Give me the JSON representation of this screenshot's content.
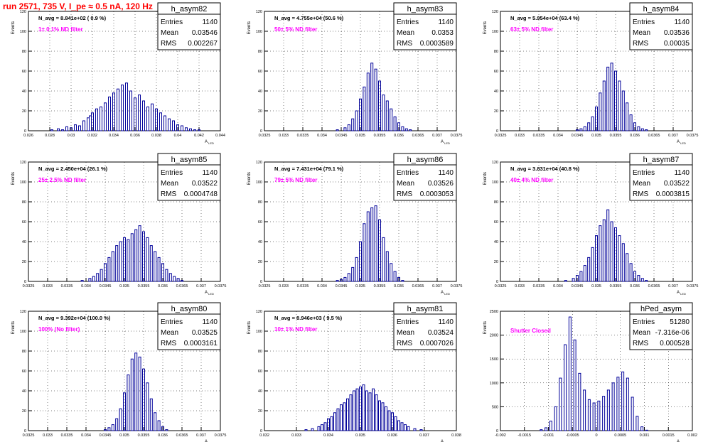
{
  "title": "run 2571,   735 V, I_pe ≈ 0.5 nA, 120 Hz",
  "title_color": "#ff0000",
  "line_color": "#000099",
  "annotation_color": "#ff00ff",
  "ylabel": "Events",
  "xlabel": "A",
  "xlabel_sub": "LED",
  "chart_data": [
    {
      "type": "bar",
      "name": "h_asym82",
      "navg": "N_avg = 8.841e+02 ( 0.9 %)",
      "filter": "1± 0.1% ND filter",
      "stats": [
        [
          "Entries",
          "1140"
        ],
        [
          "Mean",
          "0.03546"
        ],
        [
          "RMS",
          "0.002267"
        ]
      ],
      "xlim": [
        0.026,
        0.044
      ],
      "ylim": [
        0,
        120
      ],
      "xticks": [
        "0.026",
        "0.028",
        "0.03",
        "0.032",
        "0.034",
        "0.036",
        "0.038",
        "0.04",
        "0.042",
        "0.044"
      ],
      "yticks": [
        "0",
        "20",
        "40",
        "60",
        "80",
        "100",
        "120"
      ],
      "x": [
        0.0282,
        0.0288,
        0.0292,
        0.0296,
        0.03,
        0.0304,
        0.0308,
        0.0312,
        0.0316,
        0.0318,
        0.032,
        0.0324,
        0.0328,
        0.0332,
        0.0336,
        0.034,
        0.0344,
        0.0348,
        0.0352,
        0.0356,
        0.036,
        0.0364,
        0.0368,
        0.0372,
        0.0376,
        0.038,
        0.0384,
        0.0388,
        0.0392,
        0.0396,
        0.04,
        0.0404,
        0.0408,
        0.0412,
        0.0416,
        0.042
      ],
      "values": [
        1,
        2,
        1,
        4,
        3,
        6,
        5,
        10,
        13,
        15,
        18,
        22,
        24,
        28,
        34,
        38,
        42,
        46,
        48,
        40,
        33,
        36,
        30,
        24,
        27,
        22,
        18,
        15,
        12,
        10,
        6,
        5,
        3,
        2,
        1,
        1
      ]
    },
    {
      "type": "bar",
      "name": "h_asym83",
      "navg": "N_avg = 4.755e+04 (50.6 %)",
      "filter": "50± 5% ND filter",
      "stats": [
        [
          "Entries",
          "1140"
        ],
        [
          "Mean",
          "0.0353"
        ],
        [
          "RMS",
          "0.0003589"
        ]
      ],
      "xlim": [
        0.0325,
        0.0375
      ],
      "ylim": [
        0,
        120
      ],
      "xticks": [
        "0.0325",
        "0.033",
        "0.0335",
        "0.034",
        "0.0345",
        "0.035",
        "0.0355",
        "0.036",
        "0.0365",
        "0.037",
        "0.0375"
      ],
      "yticks": [
        "0",
        "20",
        "40",
        "60",
        "80",
        "100",
        "120"
      ],
      "x": [
        0.0344,
        0.0346,
        0.0347,
        0.0348,
        0.0349,
        0.035,
        0.0351,
        0.0352,
        0.0353,
        0.0354,
        0.0355,
        0.0356,
        0.0357,
        0.0358,
        0.0359,
        0.036,
        0.0361,
        0.0362,
        0.0363
      ],
      "values": [
        1,
        3,
        6,
        12,
        20,
        32,
        44,
        58,
        68,
        62,
        50,
        36,
        30,
        22,
        14,
        8,
        4,
        2,
        1
      ]
    },
    {
      "type": "bar",
      "name": "h_asym84",
      "navg": "N_avg = 5.954e+04 (63.4 %)",
      "filter": "63± 5% ND filter",
      "stats": [
        [
          "Entries",
          "1140"
        ],
        [
          "Mean",
          "0.03536"
        ],
        [
          "RMS",
          "0.00035"
        ]
      ],
      "xlim": [
        0.0325,
        0.0375
      ],
      "ylim": [
        0,
        120
      ],
      "xticks": [
        "0.0325",
        "0.033",
        "0.0335",
        "0.034",
        "0.0345",
        "0.035",
        "0.0355",
        "0.036",
        "0.0365",
        "0.037",
        "0.0375"
      ],
      "yticks": [
        "0",
        "20",
        "40",
        "60",
        "80",
        "100",
        "120"
      ],
      "x": [
        0.0345,
        0.0346,
        0.0347,
        0.0348,
        0.0349,
        0.035,
        0.0351,
        0.0352,
        0.0353,
        0.0354,
        0.0355,
        0.0356,
        0.0357,
        0.0358,
        0.0359,
        0.036,
        0.0361,
        0.0362,
        0.0363
      ],
      "values": [
        1,
        2,
        4,
        8,
        14,
        24,
        38,
        50,
        64,
        68,
        60,
        50,
        40,
        28,
        16,
        8,
        4,
        2,
        1
      ]
    },
    {
      "type": "bar",
      "name": "h_asym85",
      "navg": "N_avg = 2.450e+04 (26.1 %)",
      "filter": "25± 2.5% ND filter",
      "stats": [
        [
          "Entries",
          "1140"
        ],
        [
          "Mean",
          "0.03522"
        ],
        [
          "RMS",
          "0.0004748"
        ]
      ],
      "xlim": [
        0.0325,
        0.0375
      ],
      "ylim": [
        0,
        120
      ],
      "xticks": [
        "0.0325",
        "0.033",
        "0.0335",
        "0.034",
        "0.0345",
        "0.035",
        "0.0355",
        "0.036",
        "0.0365",
        "0.037",
        "0.0375"
      ],
      "yticks": [
        "0",
        "20",
        "40",
        "60",
        "80",
        "100",
        "120"
      ],
      "x": [
        0.0339,
        0.0341,
        0.0342,
        0.0343,
        0.0344,
        0.0345,
        0.0346,
        0.0347,
        0.0348,
        0.0349,
        0.035,
        0.0351,
        0.0352,
        0.0353,
        0.0354,
        0.0355,
        0.0356,
        0.0357,
        0.0358,
        0.0359,
        0.036,
        0.0361,
        0.0362,
        0.0363,
        0.0364,
        0.0365
      ],
      "values": [
        1,
        3,
        5,
        8,
        12,
        18,
        24,
        30,
        36,
        40,
        44,
        42,
        48,
        52,
        56,
        50,
        44,
        36,
        30,
        24,
        18,
        12,
        8,
        5,
        3,
        1
      ]
    },
    {
      "type": "bar",
      "name": "h_asym86",
      "navg": "N_avg = 7.431e+04 (79.1 %)",
      "filter": "79± 5% ND filter",
      "stats": [
        [
          "Entries",
          "1140"
        ],
        [
          "Mean",
          "0.03526"
        ],
        [
          "RMS",
          "0.0003053"
        ]
      ],
      "xlim": [
        0.0325,
        0.0375
      ],
      "ylim": [
        0,
        120
      ],
      "xticks": [
        "0.0325",
        "0.033",
        "0.0335",
        "0.034",
        "0.0345",
        "0.035",
        "0.0355",
        "0.036",
        "0.0365",
        "0.037",
        "0.0375"
      ],
      "yticks": [
        "0",
        "20",
        "40",
        "60",
        "80",
        "100",
        "120"
      ],
      "x": [
        0.0344,
        0.0345,
        0.0346,
        0.0347,
        0.0348,
        0.0349,
        0.035,
        0.0351,
        0.0352,
        0.0353,
        0.0354,
        0.0355,
        0.0356,
        0.0357,
        0.0358,
        0.0359,
        0.036,
        0.0361
      ],
      "values": [
        1,
        2,
        4,
        8,
        14,
        24,
        40,
        58,
        70,
        74,
        76,
        62,
        44,
        30,
        18,
        10,
        4,
        1
      ]
    },
    {
      "type": "bar",
      "name": "h_asym87",
      "navg": "N_avg = 3.831e+04 (40.8 %)",
      "filter": "40± 4% ND filter",
      "stats": [
        [
          "Entries",
          "1140"
        ],
        [
          "Mean",
          "0.03522"
        ],
        [
          "RMS",
          "0.0003815"
        ]
      ],
      "xlim": [
        0.0325,
        0.0375
      ],
      "ylim": [
        0,
        120
      ],
      "xticks": [
        "0.0325",
        "0.033",
        "0.0335",
        "0.034",
        "0.0345",
        "0.035",
        "0.0355",
        "0.036",
        "0.0365",
        "0.037",
        "0.0375"
      ],
      "yticks": [
        "0",
        "20",
        "40",
        "60",
        "80",
        "100",
        "120"
      ],
      "x": [
        0.0342,
        0.0344,
        0.0345,
        0.0346,
        0.0347,
        0.0348,
        0.0349,
        0.035,
        0.0351,
        0.0352,
        0.0353,
        0.0354,
        0.0355,
        0.0356,
        0.0357,
        0.0358,
        0.0359,
        0.036,
        0.0361,
        0.0362,
        0.0363
      ],
      "values": [
        1,
        3,
        6,
        10,
        16,
        24,
        34,
        46,
        56,
        62,
        72,
        60,
        54,
        46,
        38,
        28,
        18,
        10,
        6,
        3,
        1
      ]
    },
    {
      "type": "bar",
      "name": "h_asym80",
      "navg": "N_avg = 9.392e+04 (100.0 %)",
      "filter": "100% (No filter)",
      "stats": [
        [
          "Entries",
          "1140"
        ],
        [
          "Mean",
          "0.03525"
        ],
        [
          "RMS",
          "0.0003161"
        ]
      ],
      "xlim": [
        0.0325,
        0.0375
      ],
      "ylim": [
        0,
        120
      ],
      "xticks": [
        "0.0325",
        "0.033",
        "0.0335",
        "0.034",
        "0.0345",
        "0.035",
        "0.0355",
        "0.036",
        "0.0365",
        "0.037",
        "0.0375"
      ],
      "yticks": [
        "0",
        "20",
        "40",
        "60",
        "80",
        "100",
        "120"
      ],
      "x": [
        0.0345,
        0.0346,
        0.0347,
        0.0348,
        0.0349,
        0.035,
        0.0351,
        0.0352,
        0.0353,
        0.0354,
        0.0355,
        0.0356,
        0.0357,
        0.0358,
        0.0359,
        0.036,
        0.0361
      ],
      "values": [
        1,
        3,
        6,
        12,
        22,
        38,
        56,
        72,
        78,
        74,
        62,
        48,
        32,
        18,
        10,
        4,
        1
      ]
    },
    {
      "type": "bar",
      "name": "h_asym81",
      "navg": "N_avg = 8.946e+03 ( 9.5 %)",
      "filter": "10± 1% ND filter",
      "stats": [
        [
          "Entries",
          "1140"
        ],
        [
          "Mean",
          "0.03524"
        ],
        [
          "RMS",
          "0.0007026"
        ]
      ],
      "xlim": [
        0.032,
        0.038
      ],
      "ylim": [
        0,
        120
      ],
      "xticks": [
        "0.032",
        "0.033",
        "0.034",
        "0.035",
        "0.036",
        "0.037",
        "0.038"
      ],
      "yticks": [
        "0",
        "20",
        "40",
        "60",
        "80",
        "100",
        "120"
      ],
      "x": [
        0.0333,
        0.0335,
        0.0337,
        0.0338,
        0.0339,
        0.034,
        0.0341,
        0.0342,
        0.0343,
        0.0344,
        0.0345,
        0.0346,
        0.0347,
        0.0348,
        0.0349,
        0.035,
        0.0351,
        0.0352,
        0.0353,
        0.0354,
        0.0355,
        0.0356,
        0.0357,
        0.0358,
        0.0359,
        0.036,
        0.0361,
        0.0362,
        0.0363,
        0.0364,
        0.0365,
        0.0367,
        0.0369
      ],
      "values": [
        1,
        2,
        4,
        6,
        8,
        12,
        14,
        18,
        22,
        26,
        28,
        32,
        36,
        40,
        42,
        44,
        46,
        40,
        38,
        42,
        36,
        30,
        28,
        24,
        20,
        18,
        14,
        10,
        8,
        6,
        4,
        2,
        1
      ]
    },
    {
      "type": "bar",
      "name": "hPed_asym",
      "navg": "",
      "filter": "Shutter Closed",
      "stats": [
        [
          "Entries",
          "51280"
        ],
        [
          "Mean",
          "-7.316e-06"
        ],
        [
          "RMS",
          "0.000528"
        ]
      ],
      "xlim": [
        -0.002,
        0.002
      ],
      "ylim": [
        0,
        2500
      ],
      "xticks": [
        "-0.002",
        "-0.0015",
        "-0.001",
        "-0.0005",
        "0",
        "0.0005",
        "0.001",
        "0.0015",
        "0.002"
      ],
      "yticks": [
        "0",
        "500",
        "1000",
        "1500",
        "2000",
        "2500"
      ],
      "x": [
        -0.00115,
        -0.00105,
        -0.00095,
        -0.00085,
        -0.00075,
        -0.00065,
        -0.00055,
        -0.00045,
        -0.00035,
        -0.00025,
        -0.00015,
        -5e-05,
        5e-05,
        0.00015,
        0.00025,
        0.00035,
        0.00045,
        0.00055,
        0.00065,
        0.00075,
        0.00085,
        0.00095,
        0.00105
      ],
      "values": [
        20,
        60,
        200,
        500,
        1100,
        1800,
        2380,
        1900,
        1200,
        850,
        650,
        580,
        620,
        720,
        850,
        1000,
        1120,
        1230,
        1100,
        700,
        300,
        80,
        10
      ]
    }
  ]
}
